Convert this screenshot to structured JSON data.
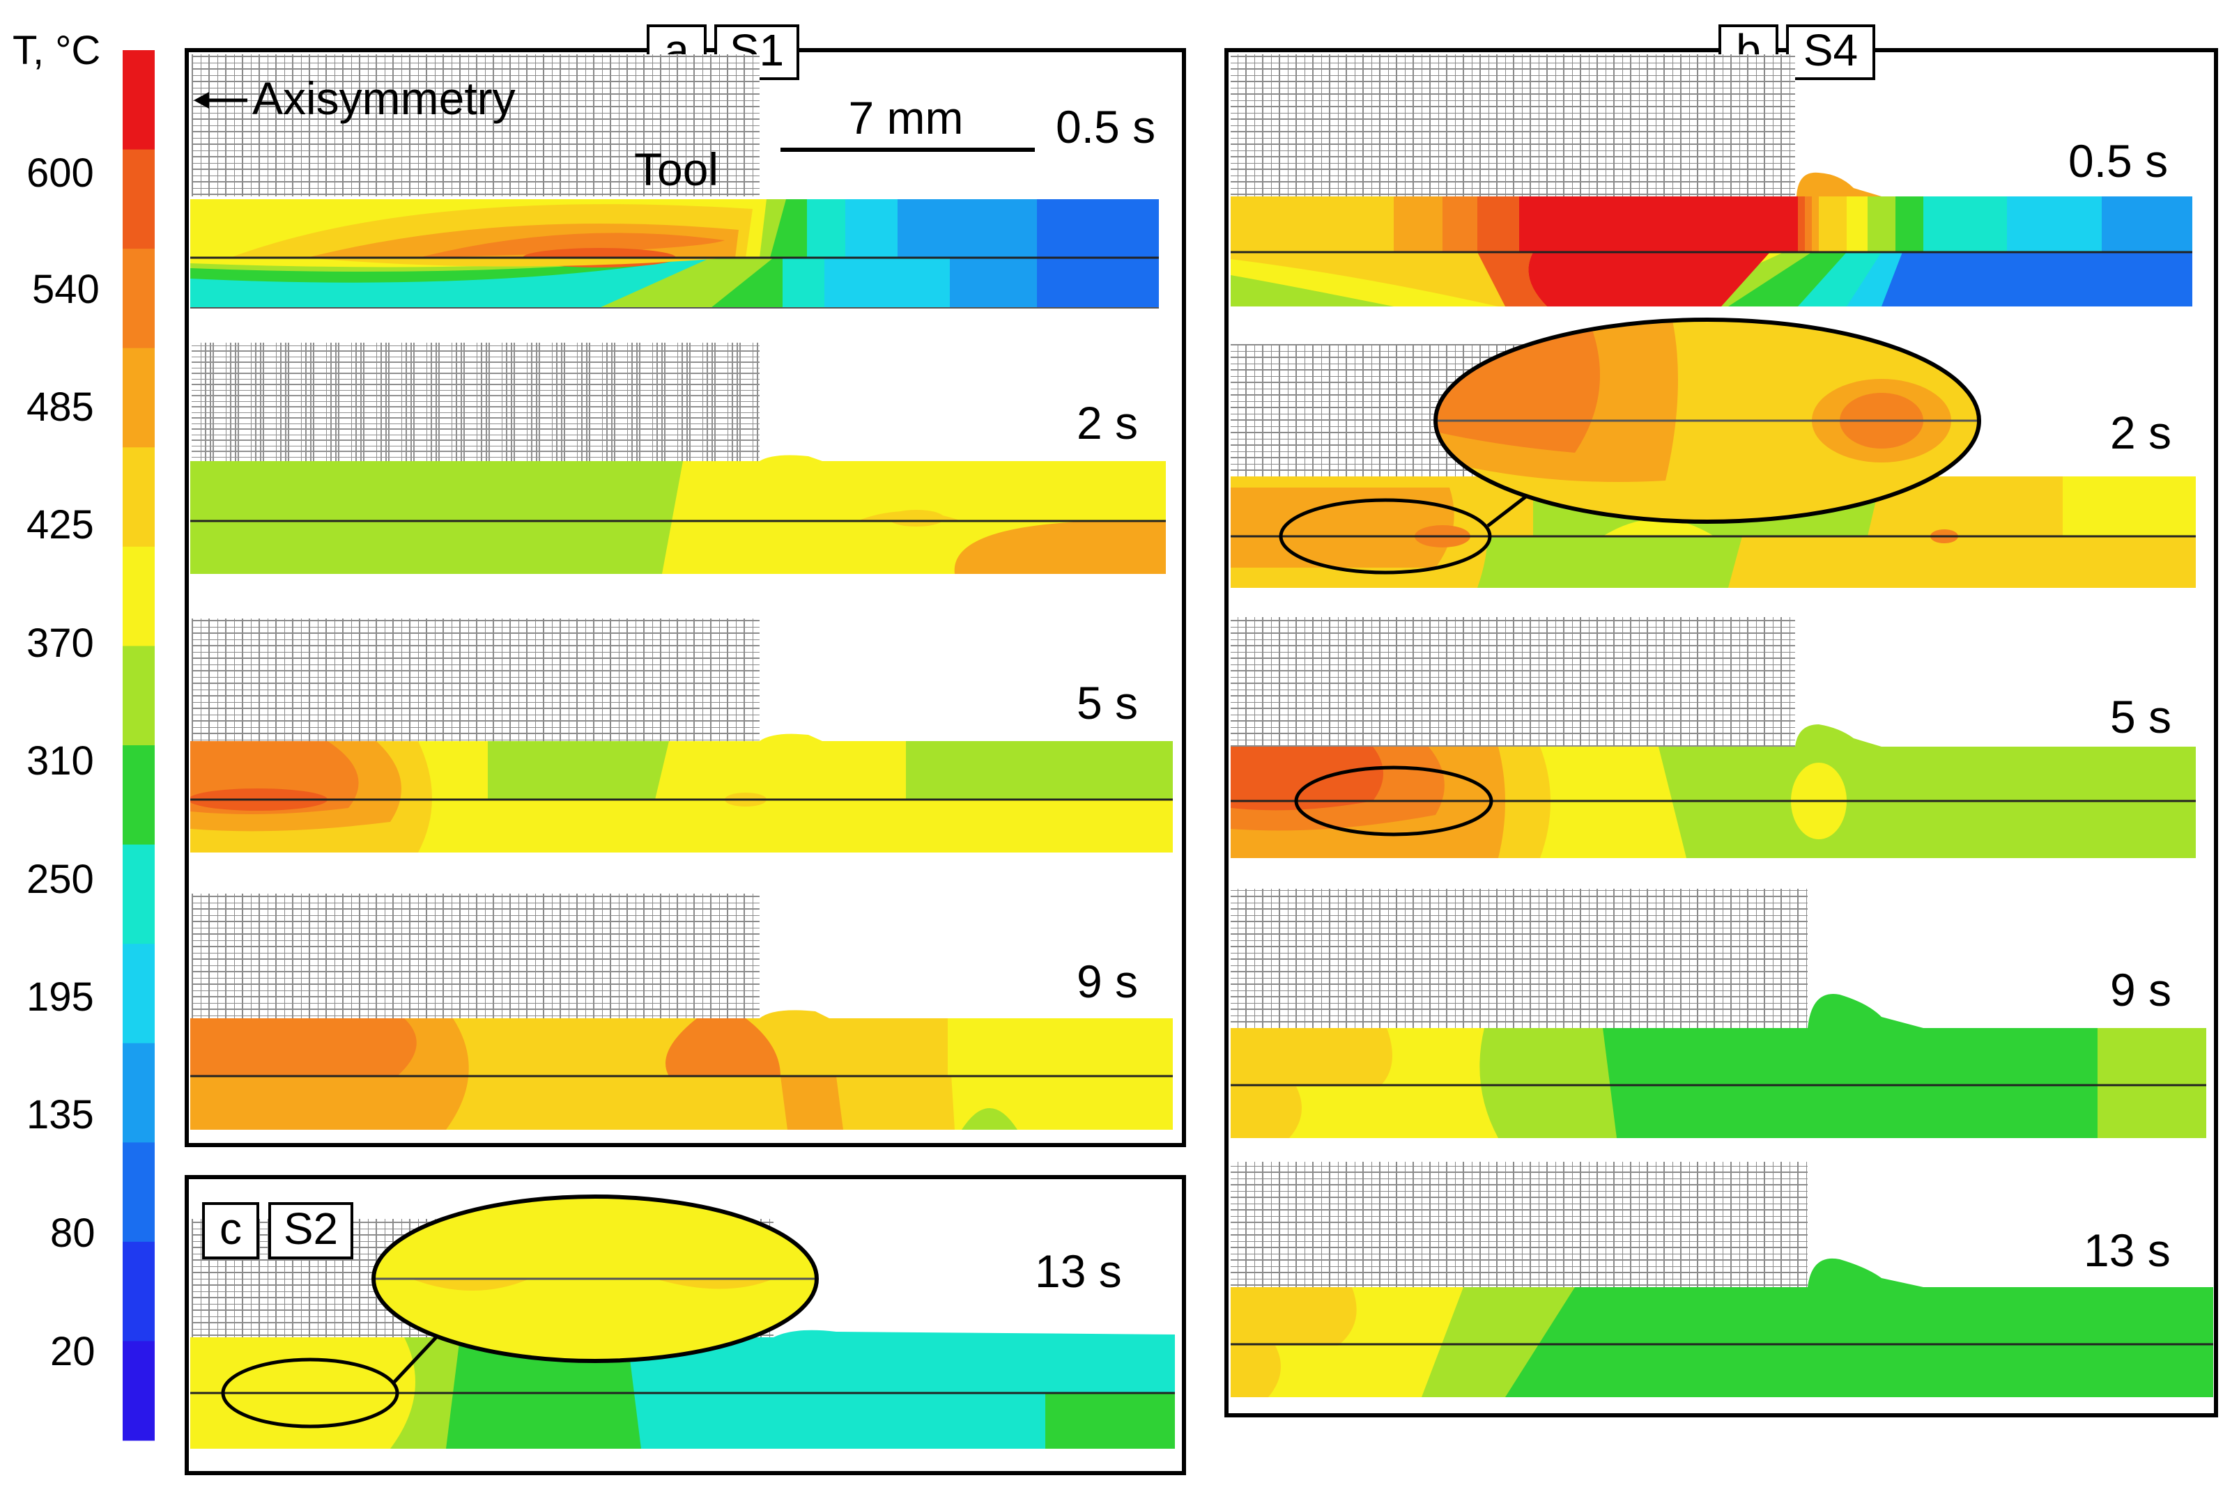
{
  "colorbar": {
    "title": "T, °C",
    "labels": [
      "600",
      "540",
      "485",
      "425",
      "370",
      "310",
      "250",
      "195",
      "135",
      "80",
      "20"
    ],
    "colors": [
      "#e8171a",
      "#ee5d1c",
      "#f4831f",
      "#f7a61c",
      "#f9d21c",
      "#f8f21c",
      "#a6e22a",
      "#2fd235",
      "#16e6cc",
      "#1ad2f0",
      "#1a9ef0",
      "#1a6ef0",
      "#1f3af0",
      "#2a17ea"
    ]
  },
  "panel_a": {
    "letter": "a",
    "sample": "S1",
    "axisymmetry_label": "Axisymmetry",
    "tool_label": "Tool",
    "scale_label": "7 mm",
    "times": [
      "0.5 s",
      "2 s",
      "5 s",
      "9 s"
    ]
  },
  "panel_b": {
    "letter": "b",
    "sample": "S4",
    "times": [
      "0.5 s",
      "2 s",
      "5 s",
      "9 s",
      "13 s"
    ]
  },
  "panel_c": {
    "letter": "c",
    "sample": "S2",
    "times": [
      "13 s"
    ]
  }
}
